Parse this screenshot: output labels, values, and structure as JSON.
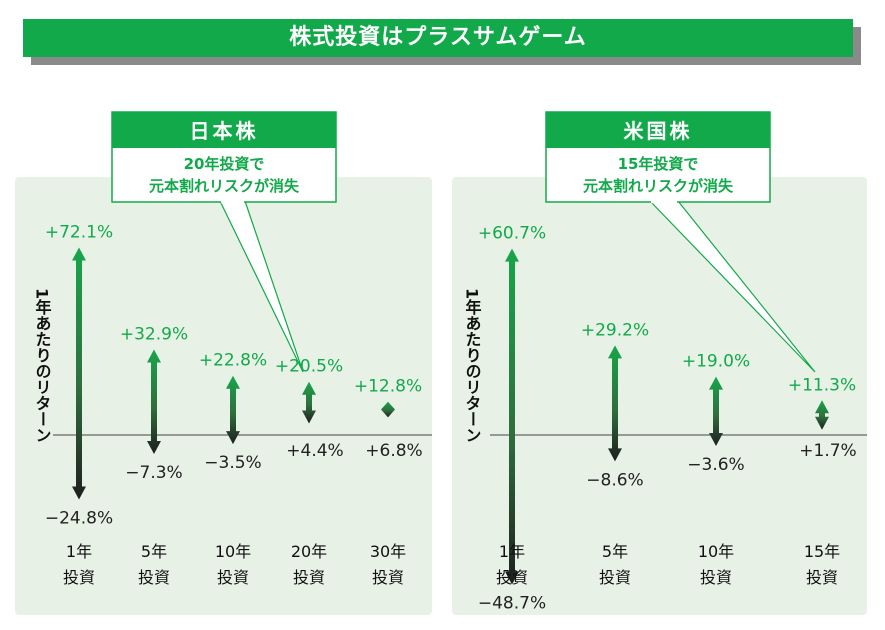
{
  "title": "株式投資はプラスサムゲーム",
  "colors": {
    "accent": "#12a94a",
    "positive_text": "#12a94a",
    "negative_text": "#222222",
    "panel_bg": "#e8f1e6"
  },
  "chart_data": [
    {
      "type": "range",
      "panel_title": "日本株",
      "note_lines": [
        "20年投資で",
        "元本割れリスクが消失"
      ],
      "ylabel": "1年あたりのリターン",
      "categories": [
        {
          "line1": "1年",
          "line2": "投資",
          "max": 72.1,
          "min": -24.8,
          "max_label": "+72.1%",
          "min_label": "−24.8%"
        },
        {
          "line1": "5年",
          "line2": "投資",
          "max": 32.9,
          "min": -7.3,
          "max_label": "+32.9%",
          "min_label": "−7.3%"
        },
        {
          "line1": "10年",
          "line2": "投資",
          "max": 22.8,
          "min": -3.5,
          "max_label": "+22.8%",
          "min_label": "−3.5%"
        },
        {
          "line1": "20年",
          "line2": "投資",
          "max": 20.5,
          "min": 4.4,
          "max_label": "+20.5%",
          "min_label": "+4.4%"
        },
        {
          "line1": "30年",
          "line2": "投資",
          "max": 12.8,
          "min": 6.8,
          "max_label": "+12.8%",
          "min_label": "+6.8%"
        }
      ]
    },
    {
      "type": "range",
      "panel_title": "米国株",
      "note_lines": [
        "15年投資で",
        "元本割れリスクが消失"
      ],
      "ylabel": "1年あたりのリターン",
      "categories": [
        {
          "line1": "1年",
          "line2": "投資",
          "max": 60.7,
          "min": -48.7,
          "max_label": "+60.7%",
          "min_label": "−48.7%"
        },
        {
          "line1": "5年",
          "line2": "投資",
          "max": 29.2,
          "min": -8.6,
          "max_label": "+29.2%",
          "min_label": "−8.6%"
        },
        {
          "line1": "10年",
          "line2": "投資",
          "max": 19.0,
          "min": -3.6,
          "max_label": "+19.0%",
          "min_label": "−3.6%"
        },
        {
          "line1": "15年",
          "line2": "投資",
          "max": 11.3,
          "min": 1.7,
          "max_label": "+11.3%",
          "min_label": "+1.7%"
        }
      ]
    }
  ]
}
